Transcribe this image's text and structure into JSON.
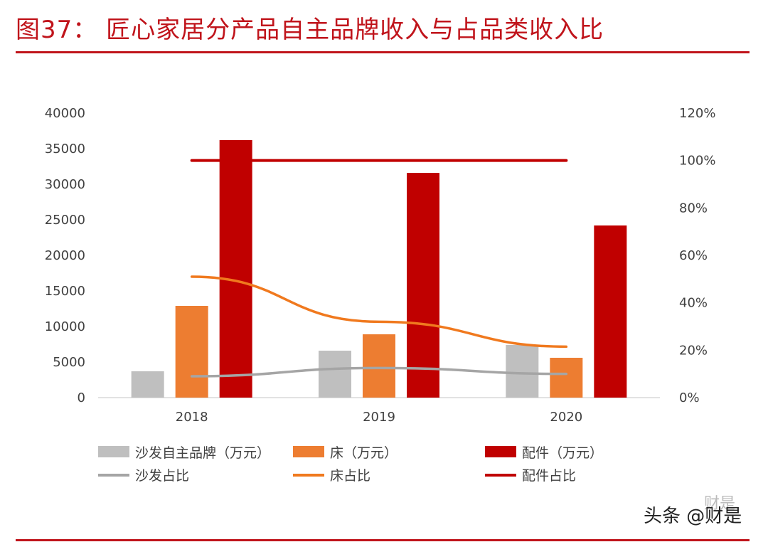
{
  "header": {
    "title": "图37：  匠心家居分产品自主品牌收入与占品类收入比"
  },
  "watermark": {
    "text": "头条 @财是",
    "ghost_text": "财是"
  },
  "colors": {
    "accent": "#c0141b",
    "sofa": "#bfbfbf",
    "bed": "#ed7d31",
    "parts": "#c00000",
    "sofa_ratio": "#a5a5a5",
    "bed_ratio": "#f0791e",
    "parts_ratio": "#c00000"
  },
  "chart_data": {
    "type": "bar",
    "categories": [
      "2018",
      "2019",
      "2020"
    ],
    "ylim": [
      0,
      40000
    ],
    "yticks": [
      "0",
      "5000",
      "10000",
      "15000",
      "20000",
      "25000",
      "30000",
      "35000",
      "40000"
    ],
    "y2lim": [
      0,
      1.2
    ],
    "y2ticks": [
      "0%",
      "20%",
      "40%",
      "60%",
      "80%",
      "100%",
      "120%"
    ],
    "grid": false,
    "legend_position": "bottom",
    "series": [
      {
        "name": "沙发自主品牌（万元）",
        "kind": "bar",
        "axis": "left",
        "color": "#bfbfbf",
        "values": [
          3700,
          6600,
          7400
        ]
      },
      {
        "name": "床（万元）",
        "kind": "bar",
        "axis": "left",
        "color": "#ed7d31",
        "values": [
          12900,
          8900,
          5600
        ]
      },
      {
        "name": "配件（万元）",
        "kind": "bar",
        "axis": "left",
        "color": "#c00000",
        "values": [
          36200,
          31600,
          24200
        ]
      },
      {
        "name": "沙发占比",
        "kind": "line",
        "axis": "right",
        "color": "#a5a5a5",
        "values": [
          0.09,
          0.125,
          0.1
        ]
      },
      {
        "name": "床占比",
        "kind": "line",
        "axis": "right",
        "color": "#f0791e",
        "values": [
          0.51,
          0.32,
          0.215
        ]
      },
      {
        "name": "配件占比",
        "kind": "line",
        "axis": "right",
        "color": "#c00000",
        "values": [
          1.0,
          1.0,
          1.0
        ]
      }
    ]
  }
}
